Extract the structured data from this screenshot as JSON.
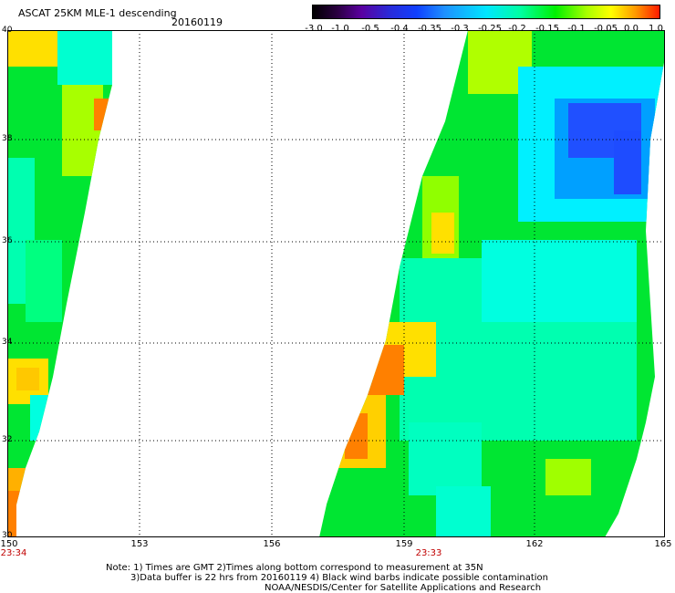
{
  "header": {
    "title": "ASCAT 25KM MLE-1 descending",
    "date": "20160119"
  },
  "colorbar": {
    "ticks": [
      "-3.0",
      "-1.0",
      "-0.5",
      "-0.4",
      "-0.35",
      "-0.3",
      "-0.25",
      "-0.2",
      "-0.15",
      "-0.1",
      "-0.05",
      "0.0",
      "1.0"
    ]
  },
  "map": {
    "lat_labels": [
      "40",
      "38",
      "36",
      "34",
      "32",
      "30"
    ],
    "lon_labels": [
      "150",
      "153",
      "156",
      "159",
      "162",
      "165"
    ],
    "pass_times": [
      "23:34",
      "23:33"
    ],
    "colors": {
      "green": "#00e632",
      "cyan": "#00ffe0",
      "yellow": "#ffff00",
      "orange": "#ff8000",
      "blue": "#1e50ff"
    }
  },
  "footer": {
    "note_line1": "Note: 1) Times are GMT 2)Times along bottom correspond to measurement at 35N",
    "note_line2": "3)Data buffer is 22 hrs from 20160119 4) Black wind barbs indicate possible contamination",
    "credit": "NOAA/NESDIS/Center for Satellite Applications and Research"
  }
}
